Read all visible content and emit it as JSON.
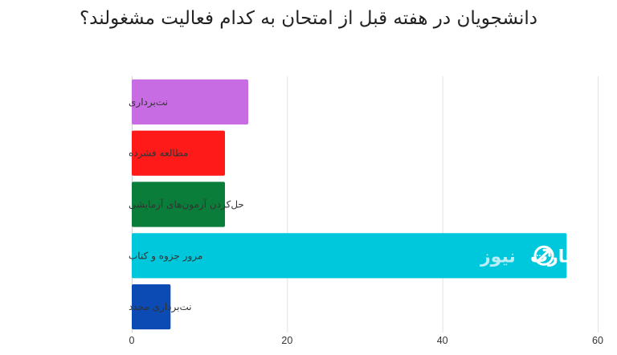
{
  "chart_data": {
    "type": "bar",
    "orientation": "horizontal",
    "title": "دانشجویان در هفته قبل از امتحان به کدام فعالیت مشغولند؟",
    "categories": [
      "نت‌برداری",
      "مطالعه فشرده",
      "حل‌کردن آزمون‌های آزمایشی",
      "مرور جزوه و کتاب",
      "نت‌برداری مجدد"
    ],
    "values": [
      15,
      12,
      12,
      56,
      5
    ],
    "colors": [
      "#c76ce3",
      "#ff1a1a",
      "#0a7d3a",
      "#00c8dc",
      "#0b4bb3"
    ],
    "xlim": [
      0,
      60
    ],
    "xticks": [
      0,
      20,
      40,
      60
    ],
    "xlabel": "",
    "ylabel": "",
    "grid": true,
    "legend": "none"
  },
  "watermark": {
    "text_main": "تجارت",
    "text_sub": "نیوز",
    "color_main": "#ffffff",
    "color_sub": "#b9eef4"
  }
}
